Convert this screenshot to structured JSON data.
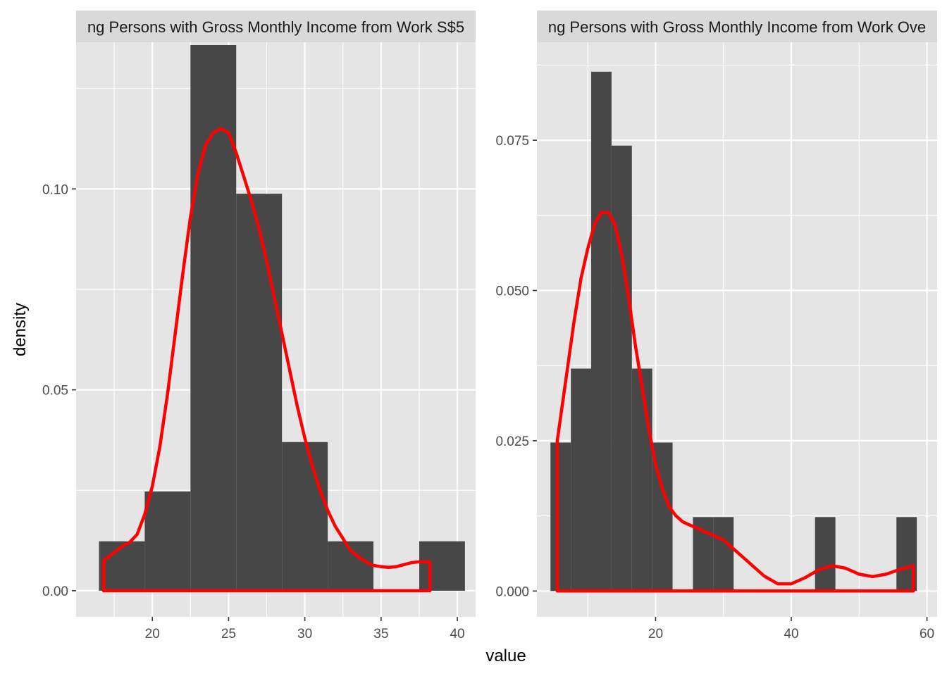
{
  "chart_data": {
    "type": "histogram",
    "x_label": "value",
    "y_label": "density",
    "colors": {
      "panel_background": "#e5e5e5",
      "strip_background": "#d9d9d9",
      "bar_fill": "#474747",
      "density_line": "#ff0000",
      "grid": "#ffffff"
    },
    "panels": [
      {
        "strip_label": "ng Persons with Gross Monthly Income from Work S$5",
        "xlim": [
          15.0,
          41.2
        ],
        "ylim": [
          -0.0065,
          0.1365
        ],
        "x_ticks": [
          20,
          25,
          30,
          35,
          40
        ],
        "x_tick_labels": [
          "20",
          "25",
          "30",
          "35",
          "40"
        ],
        "y_ticks": [
          0.0,
          0.05,
          0.1
        ],
        "y_tick_labels": [
          "0.00",
          "0.05",
          "0.10"
        ],
        "bins": [
          {
            "x0": 16.5,
            "x1": 19.5,
            "density": 0.0123
          },
          {
            "x0": 19.5,
            "x1": 22.5,
            "density": 0.0247
          },
          {
            "x0": 22.5,
            "x1": 25.5,
            "density": 0.1358
          },
          {
            "x0": 25.5,
            "x1": 28.5,
            "density": 0.0988
          },
          {
            "x0": 28.5,
            "x1": 31.5,
            "density": 0.037
          },
          {
            "x0": 31.5,
            "x1": 34.5,
            "density": 0.0123
          },
          {
            "x0": 34.5,
            "x1": 37.5,
            "density": 0.0
          },
          {
            "x0": 37.5,
            "x1": 40.5,
            "density": 0.0123
          }
        ],
        "density_curve": {
          "x": [
            16.8,
            17.5,
            18.0,
            18.5,
            19.0,
            19.5,
            20.0,
            20.5,
            21.0,
            21.5,
            22.0,
            22.5,
            23.0,
            23.5,
            24.0,
            24.5,
            25.0,
            25.5,
            26.0,
            26.5,
            27.0,
            27.5,
            28.0,
            28.5,
            29.0,
            29.5,
            30.0,
            30.5,
            31.0,
            31.5,
            32.0,
            32.5,
            33.0,
            33.5,
            34.0,
            34.5,
            35.0,
            35.5,
            36.0,
            36.5,
            37.0,
            37.5,
            38.2
          ],
          "y": [
            0.0075,
            0.0095,
            0.011,
            0.012,
            0.014,
            0.019,
            0.026,
            0.036,
            0.049,
            0.064,
            0.079,
            0.093,
            0.104,
            0.111,
            0.114,
            0.115,
            0.114,
            0.109,
            0.103,
            0.097,
            0.09,
            0.082,
            0.073,
            0.064,
            0.055,
            0.046,
            0.038,
            0.031,
            0.025,
            0.02,
            0.016,
            0.013,
            0.01,
            0.0085,
            0.0072,
            0.0063,
            0.006,
            0.0058,
            0.006,
            0.0065,
            0.007,
            0.0072,
            0.0072
          ]
        }
      },
      {
        "strip_label": "ng Persons with Gross Monthly Income from Work Ove",
        "xlim": [
          2.5,
          61.5
        ],
        "ylim": [
          -0.0043,
          0.0913
        ],
        "x_ticks": [
          20,
          40,
          60
        ],
        "x_tick_labels": [
          "20",
          "40",
          "60"
        ],
        "y_ticks": [
          0.0,
          0.025,
          0.05,
          0.075
        ],
        "y_tick_labels": [
          "0.000",
          "0.025",
          "0.050",
          "0.075"
        ],
        "bins": [
          {
            "x0": 4.5,
            "x1": 7.5,
            "density": 0.0247
          },
          {
            "x0": 7.5,
            "x1": 10.5,
            "density": 0.037
          },
          {
            "x0": 10.5,
            "x1": 13.5,
            "density": 0.0864
          },
          {
            "x0": 13.5,
            "x1": 16.5,
            "density": 0.0741
          },
          {
            "x0": 16.5,
            "x1": 19.5,
            "density": 0.037
          },
          {
            "x0": 19.5,
            "x1": 22.5,
            "density": 0.0247
          },
          {
            "x0": 22.5,
            "x1": 25.5,
            "density": 0.0
          },
          {
            "x0": 25.5,
            "x1": 28.5,
            "density": 0.0123
          },
          {
            "x0": 28.5,
            "x1": 31.5,
            "density": 0.0123
          },
          {
            "x0": 31.5,
            "x1": 34.5,
            "density": 0.0
          },
          {
            "x0": 34.5,
            "x1": 37.5,
            "density": 0.0
          },
          {
            "x0": 37.5,
            "x1": 40.5,
            "density": 0.0
          },
          {
            "x0": 40.5,
            "x1": 43.5,
            "density": 0.0
          },
          {
            "x0": 43.5,
            "x1": 46.5,
            "density": 0.0123
          },
          {
            "x0": 46.5,
            "x1": 49.5,
            "density": 0.0
          },
          {
            "x0": 49.5,
            "x1": 52.5,
            "density": 0.0
          },
          {
            "x0": 52.5,
            "x1": 55.5,
            "density": 0.0
          },
          {
            "x0": 55.5,
            "x1": 58.5,
            "density": 0.0123
          }
        ],
        "density_curve": {
          "x": [
            5.5,
            6.0,
            7.0,
            8.0,
            9.0,
            10.0,
            11.0,
            12.0,
            13.0,
            14.0,
            15.0,
            16.0,
            17.0,
            18.0,
            19.0,
            20.0,
            21.0,
            22.0,
            23.0,
            24.0,
            25.0,
            26.0,
            27.0,
            28.0,
            29.0,
            30.0,
            31.0,
            32.0,
            34.0,
            36.0,
            38.0,
            40.0,
            42.0,
            44.0,
            46.0,
            48.0,
            50.0,
            52.0,
            54.0,
            56.0,
            58.0
          ],
          "y": [
            0.025,
            0.029,
            0.037,
            0.045,
            0.052,
            0.057,
            0.061,
            0.063,
            0.063,
            0.061,
            0.056,
            0.049,
            0.041,
            0.034,
            0.027,
            0.021,
            0.017,
            0.014,
            0.0125,
            0.0115,
            0.011,
            0.0105,
            0.01,
            0.0095,
            0.009,
            0.0085,
            0.0075,
            0.0065,
            0.0045,
            0.0025,
            0.0012,
            0.0012,
            0.0022,
            0.0035,
            0.0042,
            0.0038,
            0.0028,
            0.0024,
            0.0028,
            0.0036,
            0.0042
          ]
        }
      }
    ]
  }
}
